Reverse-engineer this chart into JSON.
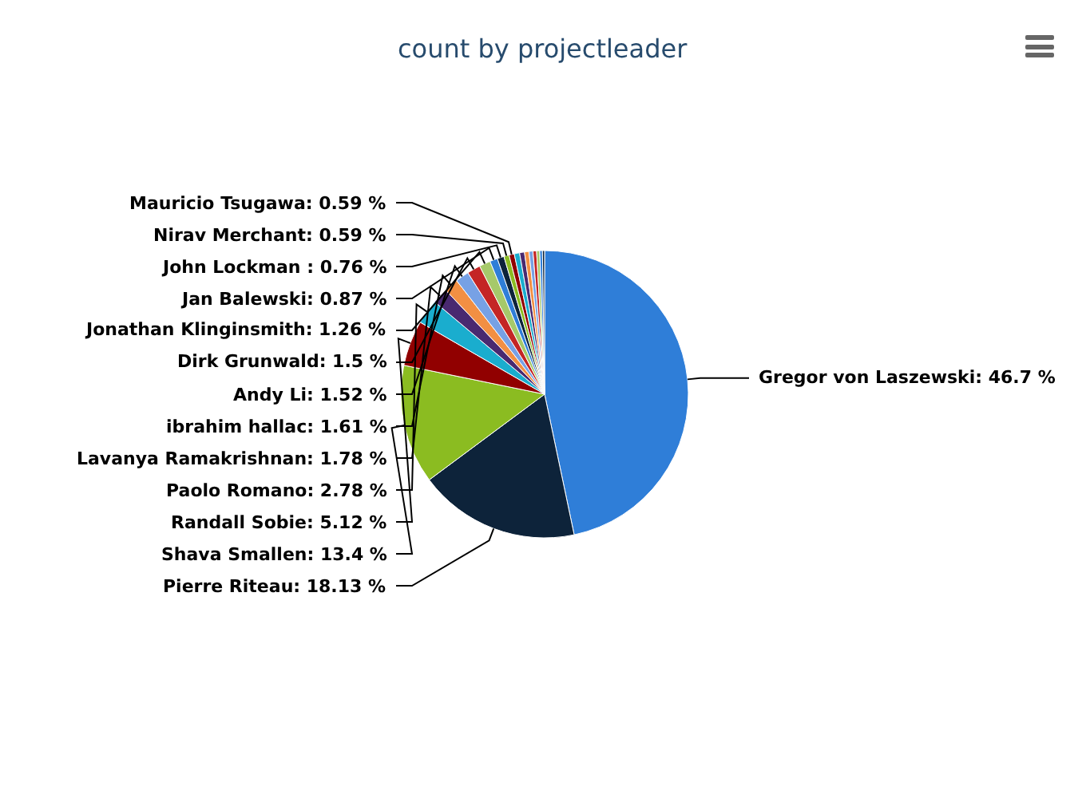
{
  "chart_data": {
    "type": "pie",
    "title": "count by projectleader",
    "categories": [
      "Gregor von Laszewski",
      "Pierre Riteau",
      "Shava Smallen",
      "Randall Sobie",
      "Paolo Romano",
      "Lavanya Ramakrishnan",
      "ibrahim hallac",
      "Andy Li",
      "Dirk Grunwald",
      "Jonathan Klinginsmith",
      "Jan Balewski",
      "John Lockman ",
      "Nirav Merchant",
      "Mauricio Tsugawa",
      null,
      null,
      null,
      null,
      null,
      null,
      null,
      null
    ],
    "values": [
      46.7,
      18.13,
      13.4,
      5.12,
      2.78,
      1.78,
      1.61,
      1.52,
      1.5,
      1.26,
      0.87,
      0.76,
      0.59,
      0.59,
      0.6,
      0.55,
      0.5,
      0.45,
      0.4,
      0.35,
      0.3,
      0.24
    ],
    "colors": [
      "#2f7ed8",
      "#0d233a",
      "#8bbc21",
      "#910000",
      "#1aadce",
      "#492970",
      "#f28f43",
      "#77a1e5",
      "#c42525",
      "#a6c96a",
      "#2f7ed8",
      "#0d233a",
      "#8bbc21",
      "#910000",
      "#1aadce",
      "#492970",
      "#f28f43",
      "#77a1e5",
      "#c42525",
      "#a6c96a",
      "#2f7ed8",
      "#0d233a"
    ],
    "value_labels": [
      "46.7 %",
      "18.13 %",
      "13.4 %",
      "5.12 %",
      "2.78 %",
      "1.78 %",
      "1.61 %",
      "1.52 %",
      "1.5 %",
      "1.26 %",
      "0.87 %",
      "0.76 %",
      "0.59 %",
      "0.59 %",
      null,
      null,
      null,
      null,
      null,
      null,
      null,
      null
    ],
    "legend": false
  }
}
